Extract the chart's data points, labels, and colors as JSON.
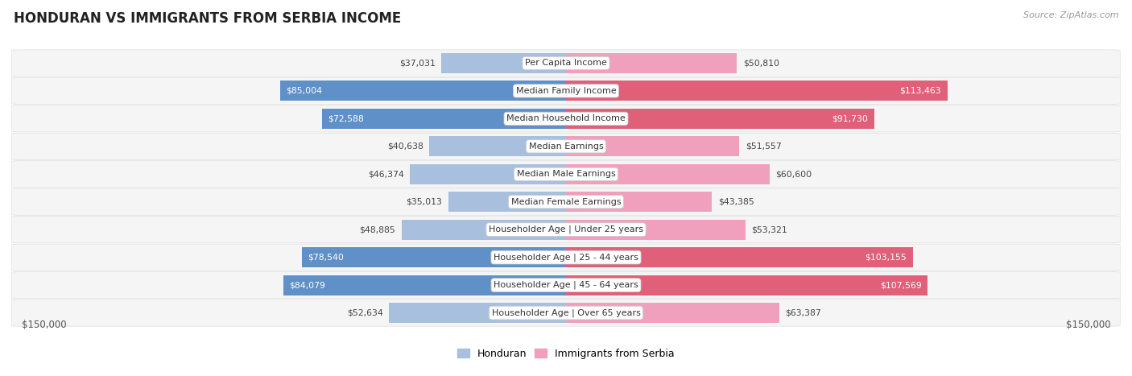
{
  "title": "HONDURAN VS IMMIGRANTS FROM SERBIA INCOME",
  "source": "Source: ZipAtlas.com",
  "categories": [
    "Per Capita Income",
    "Median Family Income",
    "Median Household Income",
    "Median Earnings",
    "Median Male Earnings",
    "Median Female Earnings",
    "Householder Age | Under 25 years",
    "Householder Age | 25 - 44 years",
    "Householder Age | 45 - 64 years",
    "Householder Age | Over 65 years"
  ],
  "honduran_values": [
    37031,
    85004,
    72588,
    40638,
    46374,
    35013,
    48885,
    78540,
    84079,
    52634
  ],
  "serbia_values": [
    50810,
    113463,
    91730,
    51557,
    60600,
    43385,
    53321,
    103155,
    107569,
    63387
  ],
  "max_value": 150000,
  "honduran_color_light": "#a8bfdd",
  "honduran_color_dark": "#6090c8",
  "serbia_color_light": "#f0a0bc",
  "serbia_color_dark": "#e0607a",
  "row_bg_color": "#f5f5f5",
  "row_border_color": "#dddddd",
  "background_color": "#ffffff",
  "legend_honduran": "Honduran",
  "legend_serbia": "Immigrants from Serbia",
  "x_label_left": "$150,000",
  "x_label_right": "$150,000",
  "dark_threshold_honduran": 65000,
  "dark_threshold_serbia": 85000
}
